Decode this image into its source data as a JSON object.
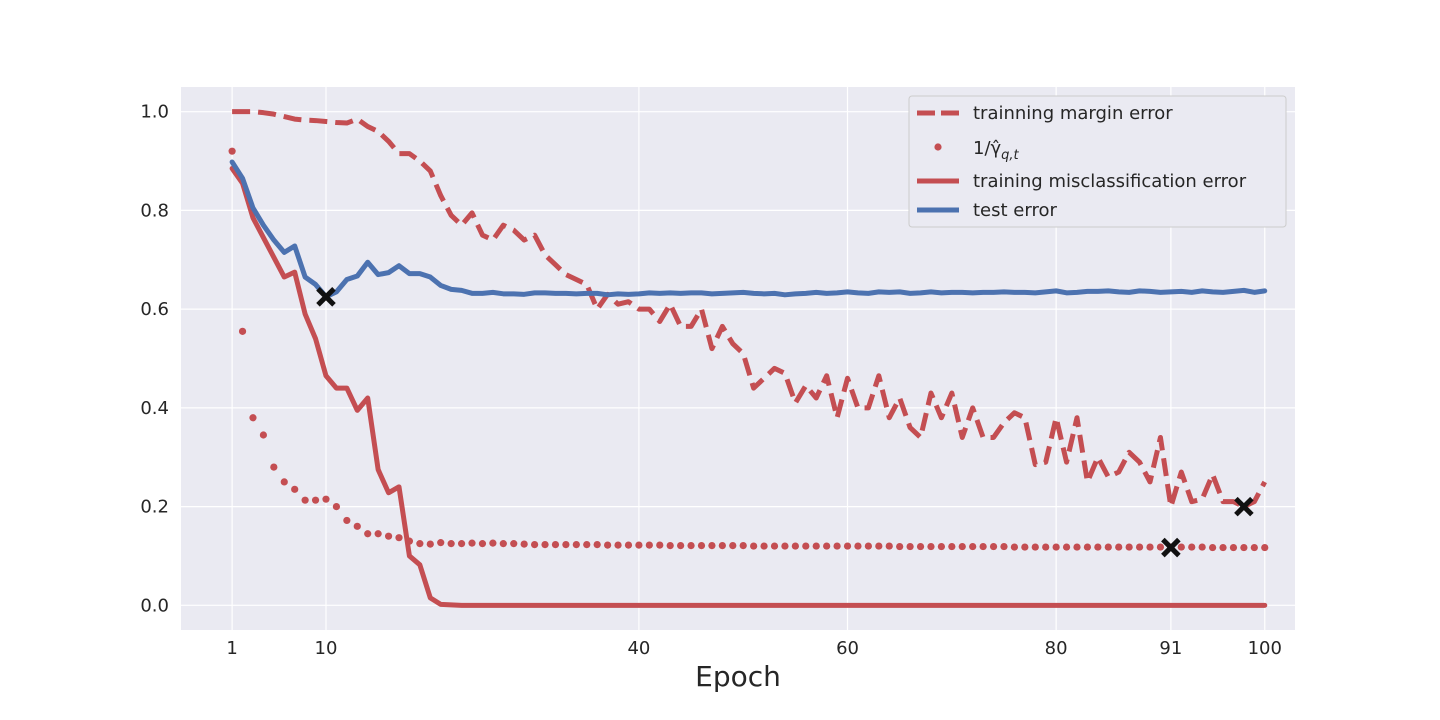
{
  "chart_data": {
    "type": "line",
    "xlabel": "Epoch",
    "ylabel": "",
    "xlim": [
      -3.9,
      102.9
    ],
    "ylim": [
      -0.05,
      1.05
    ],
    "xticks": [
      1,
      10,
      40,
      60,
      80,
      91,
      100
    ],
    "yticks": [
      0.0,
      0.2,
      0.4,
      0.6,
      0.8,
      1.0
    ],
    "ytick_labels": [
      "0.0",
      "0.2",
      "0.4",
      "0.6",
      "0.8",
      "1.0"
    ],
    "grid": true,
    "legend_position": "top-right",
    "background_color": "#eaeaf2",
    "series": [
      {
        "name": "trainning margin error",
        "style": "dashed",
        "color": "#c44e52",
        "x": [
          1,
          2,
          3,
          4,
          5,
          6,
          7,
          8,
          9,
          10,
          11,
          12,
          13,
          14,
          15,
          16,
          17,
          18,
          19,
          20,
          21,
          22,
          23,
          24,
          25,
          26,
          27,
          28,
          29,
          30,
          31,
          32,
          33,
          34,
          35,
          36,
          37,
          38,
          39,
          40,
          41,
          42,
          43,
          44,
          45,
          46,
          47,
          48,
          49,
          50,
          51,
          52,
          53,
          54,
          55,
          56,
          57,
          58,
          59,
          60,
          61,
          62,
          63,
          64,
          65,
          66,
          67,
          68,
          69,
          70,
          71,
          72,
          73,
          74,
          75,
          76,
          77,
          78,
          79,
          80,
          81,
          82,
          83,
          84,
          85,
          86,
          87,
          88,
          89,
          90,
          91,
          92,
          93,
          94,
          95,
          96,
          97,
          98,
          99,
          100
        ],
        "y": [
          1.0,
          1.0,
          1.0,
          0.998,
          0.995,
          0.99,
          0.985,
          0.983,
          0.982,
          0.98,
          0.978,
          0.977,
          0.985,
          0.97,
          0.96,
          0.94,
          0.915,
          0.915,
          0.9,
          0.88,
          0.83,
          0.79,
          0.77,
          0.795,
          0.75,
          0.74,
          0.77,
          0.76,
          0.74,
          0.75,
          0.71,
          0.69,
          0.67,
          0.66,
          0.65,
          0.6,
          0.63,
          0.61,
          0.615,
          0.6,
          0.6,
          0.575,
          0.61,
          0.565,
          0.565,
          0.6,
          0.52,
          0.565,
          0.53,
          0.51,
          0.44,
          0.46,
          0.48,
          0.47,
          0.41,
          0.445,
          0.42,
          0.465,
          0.38,
          0.46,
          0.4,
          0.4,
          0.465,
          0.38,
          0.42,
          0.36,
          0.34,
          0.43,
          0.38,
          0.43,
          0.34,
          0.4,
          0.34,
          0.34,
          0.37,
          0.39,
          0.38,
          0.285,
          0.29,
          0.38,
          0.29,
          0.38,
          0.25,
          0.3,
          0.26,
          0.27,
          0.31,
          0.29,
          0.25,
          0.34,
          0.2,
          0.27,
          0.21,
          0.215,
          0.265,
          0.21,
          0.21,
          0.2,
          0.21,
          0.25
        ]
      },
      {
        "name": "1/γ̂q,t",
        "style": "dotted",
        "color": "#c44e52",
        "x": [
          1,
          2,
          3,
          4,
          5,
          6,
          7,
          8,
          9,
          10,
          11,
          12,
          13,
          14,
          15,
          16,
          17,
          18,
          19,
          20,
          21,
          22,
          23,
          24,
          25,
          26,
          27,
          28,
          29,
          30,
          31,
          32,
          33,
          34,
          35,
          36,
          37,
          38,
          39,
          40,
          41,
          42,
          43,
          44,
          45,
          46,
          47,
          48,
          49,
          50,
          51,
          52,
          53,
          54,
          55,
          56,
          57,
          58,
          59,
          60,
          61,
          62,
          63,
          64,
          65,
          66,
          67,
          68,
          69,
          70,
          71,
          72,
          73,
          74,
          75,
          76,
          77,
          78,
          79,
          80,
          81,
          82,
          83,
          84,
          85,
          86,
          87,
          88,
          89,
          90,
          91,
          92,
          93,
          94,
          95,
          96,
          97,
          98,
          99,
          100
        ],
        "y": [
          0.92,
          0.555,
          0.38,
          0.345,
          0.28,
          0.25,
          0.235,
          0.213,
          0.213,
          0.215,
          0.2,
          0.172,
          0.16,
          0.145,
          0.145,
          0.14,
          0.137,
          0.13,
          0.125,
          0.124,
          0.127,
          0.125,
          0.125,
          0.126,
          0.125,
          0.126,
          0.125,
          0.125,
          0.124,
          0.123,
          0.123,
          0.123,
          0.123,
          0.123,
          0.123,
          0.123,
          0.122,
          0.122,
          0.122,
          0.122,
          0.122,
          0.122,
          0.121,
          0.121,
          0.121,
          0.121,
          0.121,
          0.121,
          0.121,
          0.121,
          0.12,
          0.12,
          0.12,
          0.12,
          0.12,
          0.12,
          0.12,
          0.12,
          0.12,
          0.12,
          0.12,
          0.12,
          0.12,
          0.12,
          0.119,
          0.119,
          0.119,
          0.119,
          0.119,
          0.119,
          0.119,
          0.119,
          0.119,
          0.119,
          0.119,
          0.118,
          0.118,
          0.118,
          0.118,
          0.118,
          0.118,
          0.118,
          0.118,
          0.118,
          0.118,
          0.118,
          0.118,
          0.118,
          0.118,
          0.118,
          0.118,
          0.118,
          0.118,
          0.118,
          0.117,
          0.117,
          0.117,
          0.117,
          0.117,
          0.117
        ]
      },
      {
        "name": "training misclassification error",
        "style": "solid",
        "color": "#c44e52",
        "x": [
          1,
          2,
          3,
          4,
          5,
          6,
          7,
          8,
          9,
          10,
          11,
          12,
          13,
          14,
          15,
          16,
          17,
          18,
          19,
          20,
          21,
          22,
          23,
          24,
          25,
          26,
          27,
          28,
          29,
          30,
          31,
          32,
          33,
          34,
          35,
          36,
          37,
          38,
          39,
          40,
          41,
          42,
          43,
          44,
          45,
          46,
          47,
          48,
          49,
          50,
          51,
          52,
          53,
          54,
          55,
          56,
          57,
          58,
          59,
          60,
          61,
          62,
          63,
          64,
          65,
          66,
          67,
          68,
          69,
          70,
          71,
          72,
          73,
          74,
          75,
          76,
          77,
          78,
          79,
          80,
          81,
          82,
          83,
          84,
          85,
          86,
          87,
          88,
          89,
          90,
          91,
          92,
          93,
          94,
          95,
          96,
          97,
          98,
          99,
          100
        ],
        "y": [
          0.885,
          0.855,
          0.785,
          0.745,
          0.705,
          0.665,
          0.675,
          0.59,
          0.54,
          0.465,
          0.44,
          0.44,
          0.395,
          0.42,
          0.275,
          0.228,
          0.24,
          0.1,
          0.082,
          0.015,
          0.002,
          0.001,
          0,
          0,
          0,
          0,
          0,
          0,
          0,
          0,
          0,
          0,
          0,
          0,
          0,
          0,
          0,
          0,
          0,
          0,
          0,
          0,
          0,
          0,
          0,
          0,
          0,
          0,
          0,
          0,
          0,
          0,
          0,
          0,
          0,
          0,
          0,
          0,
          0,
          0,
          0,
          0,
          0,
          0,
          0,
          0,
          0,
          0,
          0,
          0,
          0,
          0,
          0,
          0,
          0,
          0,
          0,
          0,
          0,
          0,
          0,
          0,
          0,
          0,
          0,
          0,
          0,
          0,
          0,
          0,
          0,
          0,
          0,
          0,
          0,
          0,
          0,
          0,
          0,
          0
        ]
      },
      {
        "name": "test error",
        "style": "solid",
        "color": "#4c72b0",
        "x": [
          1,
          2,
          3,
          4,
          5,
          6,
          7,
          8,
          9,
          10,
          11,
          12,
          13,
          14,
          15,
          16,
          17,
          18,
          19,
          20,
          21,
          22,
          23,
          24,
          25,
          26,
          27,
          28,
          29,
          30,
          31,
          32,
          33,
          34,
          35,
          36,
          37,
          38,
          39,
          40,
          41,
          42,
          43,
          44,
          45,
          46,
          47,
          48,
          49,
          50,
          51,
          52,
          53,
          54,
          55,
          56,
          57,
          58,
          59,
          60,
          61,
          62,
          63,
          64,
          65,
          66,
          67,
          68,
          69,
          70,
          71,
          72,
          73,
          74,
          75,
          76,
          77,
          78,
          79,
          80,
          81,
          82,
          83,
          84,
          85,
          86,
          87,
          88,
          89,
          90,
          91,
          92,
          93,
          94,
          95,
          96,
          97,
          98,
          99,
          100
        ],
        "y": [
          0.898,
          0.865,
          0.805,
          0.77,
          0.74,
          0.715,
          0.728,
          0.665,
          0.65,
          0.625,
          0.635,
          0.66,
          0.667,
          0.695,
          0.67,
          0.674,
          0.688,
          0.672,
          0.672,
          0.665,
          0.648,
          0.64,
          0.638,
          0.632,
          0.632,
          0.634,
          0.631,
          0.631,
          0.63,
          0.633,
          0.633,
          0.632,
          0.632,
          0.631,
          0.632,
          0.632,
          0.629,
          0.631,
          0.63,
          0.631,
          0.633,
          0.632,
          0.633,
          0.632,
          0.633,
          0.633,
          0.631,
          0.632,
          0.633,
          0.634,
          0.632,
          0.631,
          0.632,
          0.629,
          0.631,
          0.632,
          0.634,
          0.632,
          0.633,
          0.635,
          0.633,
          0.632,
          0.635,
          0.634,
          0.635,
          0.632,
          0.633,
          0.635,
          0.633,
          0.634,
          0.634,
          0.633,
          0.634,
          0.634,
          0.635,
          0.634,
          0.634,
          0.633,
          0.635,
          0.637,
          0.633,
          0.634,
          0.636,
          0.636,
          0.637,
          0.635,
          0.634,
          0.637,
          0.636,
          0.634,
          0.635,
          0.636,
          0.634,
          0.637,
          0.635,
          0.634,
          0.636,
          0.638,
          0.634,
          0.637
        ]
      }
    ],
    "markers": [
      {
        "x": 10,
        "y": 0.625,
        "symbol": "X"
      },
      {
        "x": 91,
        "y": 0.117,
        "symbol": "X"
      },
      {
        "x": 98,
        "y": 0.2,
        "symbol": "X"
      }
    ]
  }
}
